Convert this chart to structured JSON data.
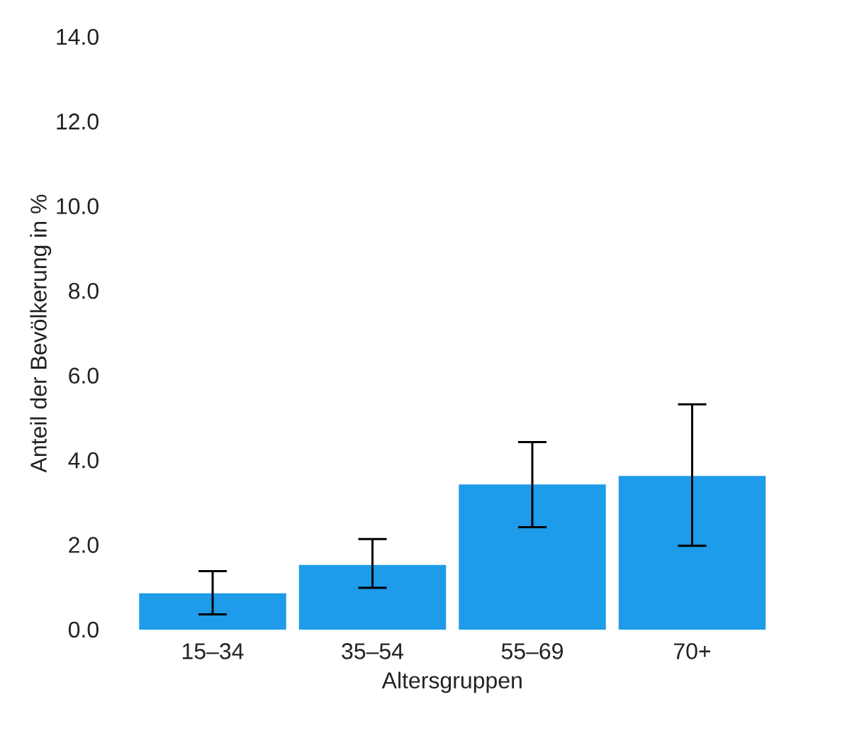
{
  "chart_data": {
    "type": "bar",
    "xlabel": "Altersgruppen",
    "ylabel": "Anteil der Bevölkerung in %",
    "categories": [
      "15–34",
      "35–54",
      "55–69",
      "70+"
    ],
    "values": [
      0.86,
      1.53,
      3.43,
      3.63
    ],
    "errors": [
      [
        0.36,
        1.38
      ],
      [
        0.99,
        2.14
      ],
      [
        2.42,
        4.43
      ],
      [
        1.98,
        5.32
      ]
    ],
    "color": "#1e9be9",
    "ylim": [
      0,
      14
    ],
    "yticks": [
      {
        "value": 0,
        "label": "0.0"
      },
      {
        "value": 2,
        "label": "2.0"
      },
      {
        "value": 4,
        "label": "4.0"
      },
      {
        "value": 6,
        "label": "6.0"
      },
      {
        "value": 8,
        "label": "8.0"
      },
      {
        "value": 10,
        "label": "10.0"
      },
      {
        "value": 12,
        "label": "12.0"
      },
      {
        "value": 14,
        "label": "14.0"
      }
    ]
  }
}
